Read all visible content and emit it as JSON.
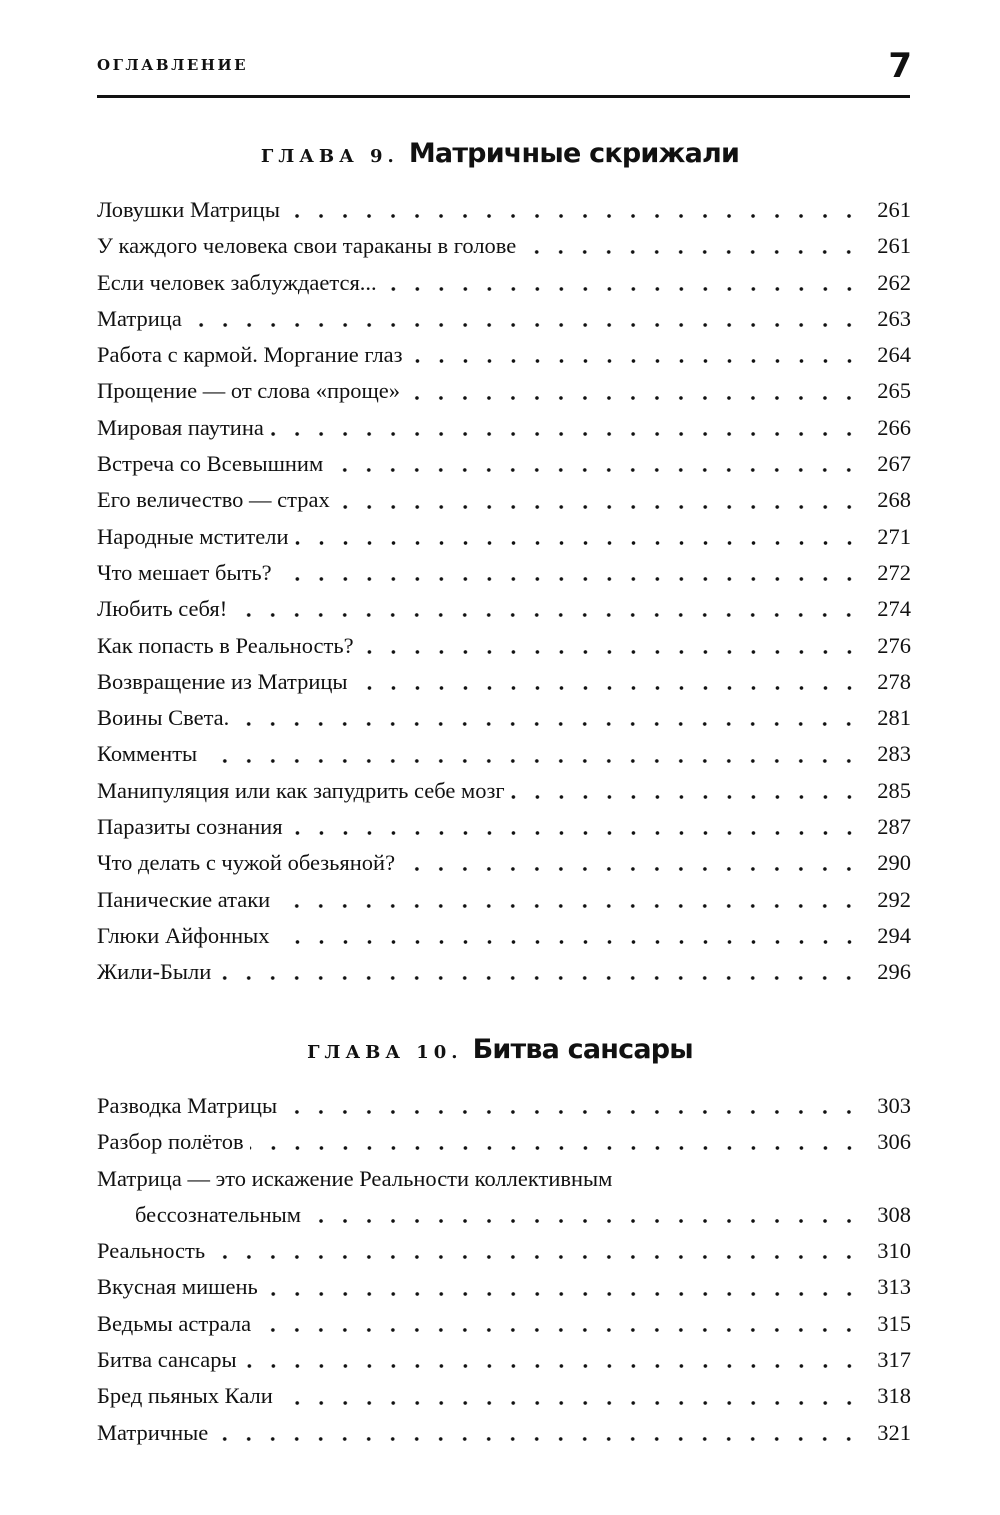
{
  "header": {
    "running_title": "ОГЛАВЛЕНИЕ",
    "page_number": "7"
  },
  "chapters": [
    {
      "label": "ГЛАВА 9.",
      "title": "Матричные скрижали",
      "entries": [
        {
          "title": "Ловушки Матрицы",
          "page": "261"
        },
        {
          "title": "У каждого человека свои тараканы в голове",
          "page": "261"
        },
        {
          "title": "Если человек заблуждается...",
          "page": "262"
        },
        {
          "title": "Матрица",
          "page": "263"
        },
        {
          "title": "Работа с кармой. Моргание глаз",
          "page": "264"
        },
        {
          "title": "Прощение — от слова «проще»",
          "page": "265"
        },
        {
          "title": "Мировая паутина",
          "page": "266"
        },
        {
          "title": "Встреча со Всевышним",
          "page": "267"
        },
        {
          "title": "Его величество — страх",
          "page": "268"
        },
        {
          "title": "Народные мстители",
          "page": "271"
        },
        {
          "title": "Что мешает быть?",
          "page": "272"
        },
        {
          "title": "Любить себя!",
          "page": "274"
        },
        {
          "title": "Как попасть в Реальность?",
          "page": "276"
        },
        {
          "title": "Возвращение из Матрицы",
          "page": "278"
        },
        {
          "title": "Воины Света.",
          "page": "281"
        },
        {
          "title": "Комменты",
          "page": "283"
        },
        {
          "title": "Манипуляция или как запудрить себе мозг",
          "page": "285"
        },
        {
          "title": "Паразиты сознания",
          "page": "287"
        },
        {
          "title": "Что делать с чужой обезьяной?",
          "page": "290"
        },
        {
          "title": "Панические атаки",
          "page": "292"
        },
        {
          "title": "Глюки Айфонных",
          "page": "294"
        },
        {
          "title": "Жили-Были",
          "page": "296"
        }
      ]
    },
    {
      "label": "ГЛАВА 10.",
      "title": "Битва сансары",
      "entries": [
        {
          "title": "Разводка Матрицы",
          "page": "303"
        },
        {
          "title": "Разбор полётов",
          "page": "306"
        },
        {
          "title": "Матрица — это искажение Реальности коллективным",
          "continuation": "бессознательным",
          "page": "308"
        },
        {
          "title": "Реальность",
          "page": "310"
        },
        {
          "title": "Вкусная мишень",
          "page": "313"
        },
        {
          "title": "Ведьмы астрала",
          "page": "315"
        },
        {
          "title": "Битва сансары",
          "page": "317"
        },
        {
          "title": "Бред пьяных Кали",
          "page": "318"
        },
        {
          "title": "Матричные",
          "page": "321"
        }
      ]
    }
  ]
}
